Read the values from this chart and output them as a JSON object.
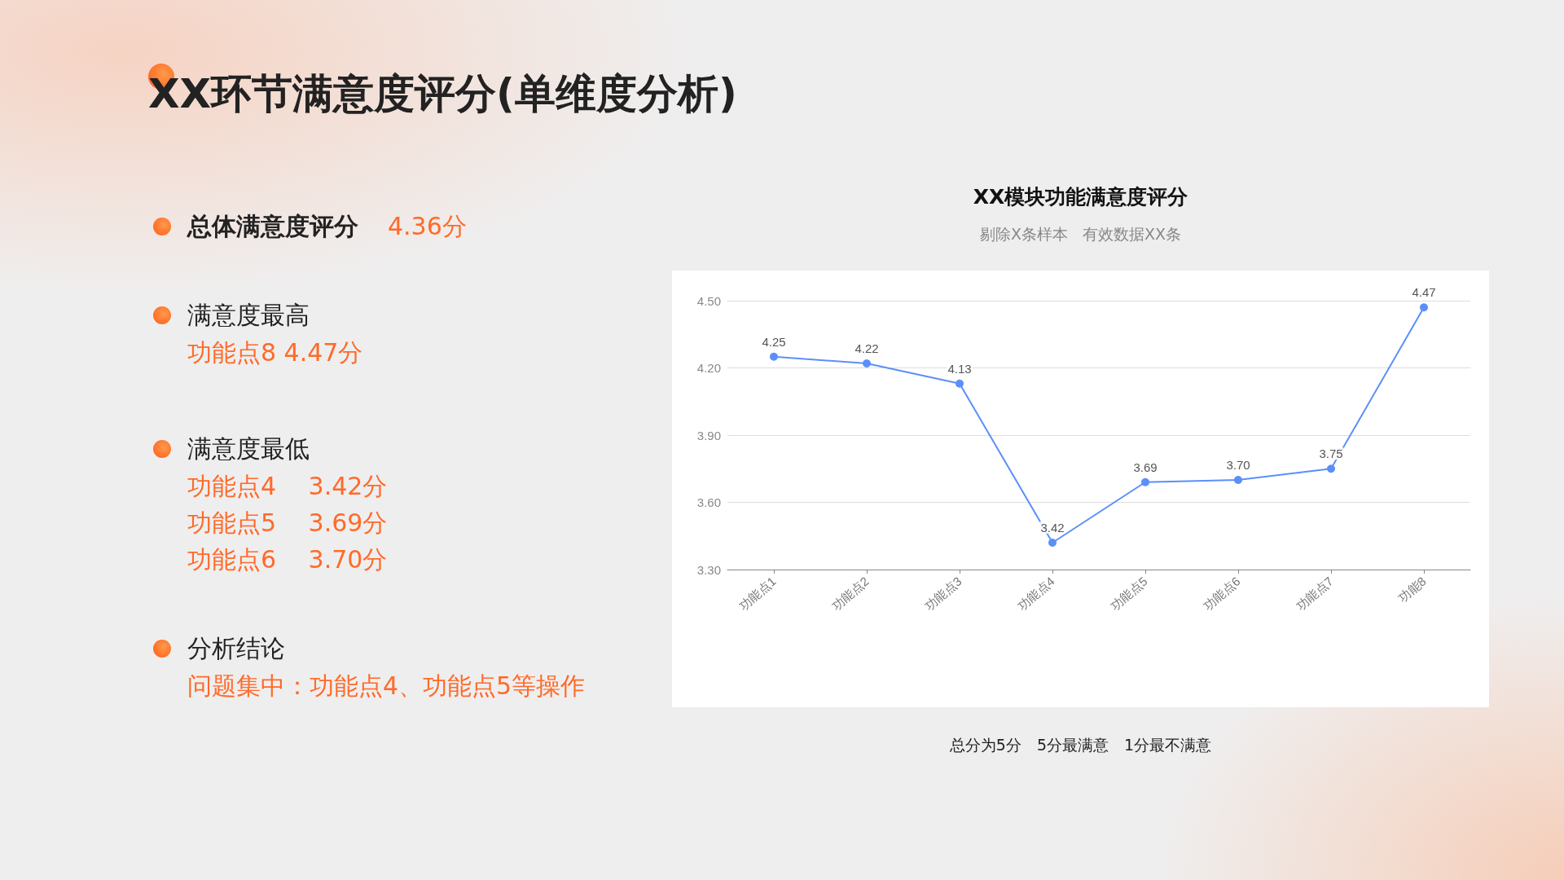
{
  "chart_data": [
    {
      "type": "other",
      "title": "XX环节满意度评分(单维度分析)",
      "annotations": [
        "总体满意度评分",
        "4.36分",
        "满意度最高",
        "功能点8 4.47分",
        "满意度最低",
        "功能点4　 3.42分",
        "功能点5　 3.69分",
        "功能点6　 3.70分",
        "分析结论",
        "问题集中：功能点4、功能点5等操作"
      ]
    },
    {
      "type": "line",
      "title": "XX模块功能满意度评分",
      "subtitle": "剔除X条样本   有效数据XX条",
      "annotations": [
        "总分为5分　5分最满意　1分最不满意"
      ],
      "categories": [
        "功能点1",
        "功能点2",
        "功能点3",
        "功能点4",
        "功能点5",
        "功能点6",
        "功能点7",
        "功能8"
      ],
      "series": [
        {
          "color": "#5b8ff9",
          "values": [
            4.25,
            4.22,
            4.13,
            3.42,
            3.69,
            3.7,
            3.75,
            4.47
          ],
          "value_labels": [
            "4.25",
            "4.22",
            "4.13",
            "3.42",
            "3.69",
            "3.70",
            "3.75",
            "4.47"
          ]
        }
      ],
      "ylim": [
        3.3,
        4.5
      ],
      "yticks": [
        {
          "value": 3.3,
          "label": "3.30"
        },
        {
          "value": 3.6,
          "label": "3.60"
        },
        {
          "value": 3.9,
          "label": "3.90"
        },
        {
          "value": 4.2,
          "label": "4.20"
        },
        {
          "value": 4.5,
          "label": "4.50"
        }
      ],
      "grid": "y",
      "marker": "circle",
      "line_style": "solid"
    }
  ]
}
